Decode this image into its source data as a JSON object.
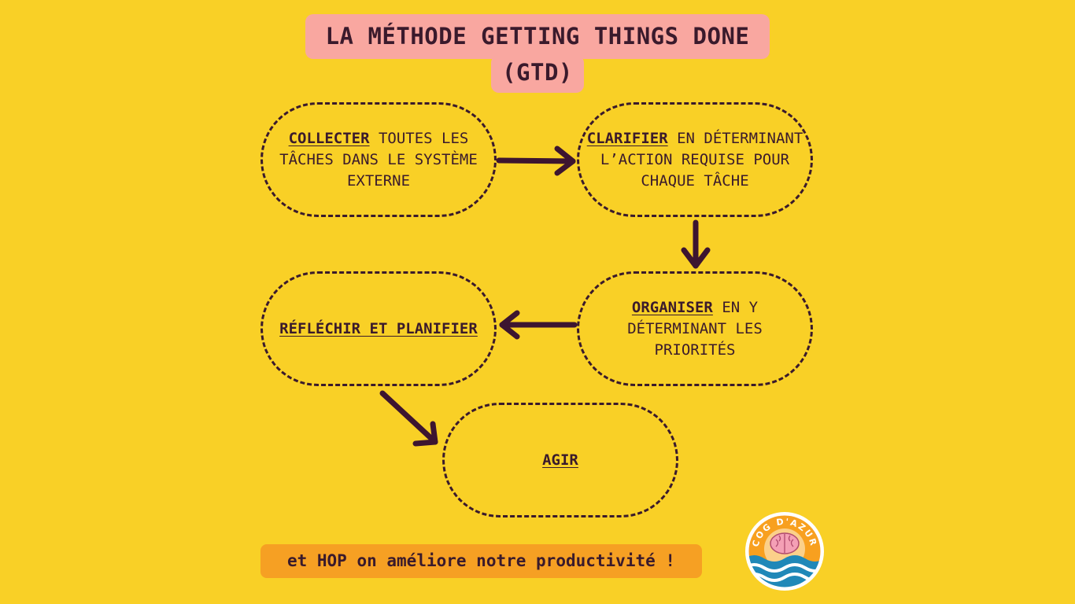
{
  "title": {
    "line1": "LA MÉTHODE GETTING THINGS DONE",
    "line2": "(GTD)"
  },
  "steps": [
    {
      "keyword": "COLLECTER",
      "text": " TOUTES LES TÂCHES DANS LE SYSTÈME EXTERNE"
    },
    {
      "keyword": "CLARIFIER",
      "text": " EN DÉTERMINANT L’ACTION REQUISE POUR CHAQUE TÂCHE"
    },
    {
      "keyword": "ORGANISER",
      "text": " EN Y DÉTERMINANT LES PRIORITÉS"
    },
    {
      "keyword": "RÉFLÉCHIR ET PLANIFIER",
      "text": ""
    },
    {
      "keyword": "AGIR",
      "text": ""
    }
  ],
  "footer": "et HOP on améliore notre productivité !",
  "logo": {
    "text": "COG D'AZUR",
    "icon": "brain-wave-logo-icon"
  },
  "colors": {
    "background": "#f9d026",
    "title_bg": "#f9a7a0",
    "ink": "#3a1a2c",
    "footer_bg": "#f6a023"
  }
}
